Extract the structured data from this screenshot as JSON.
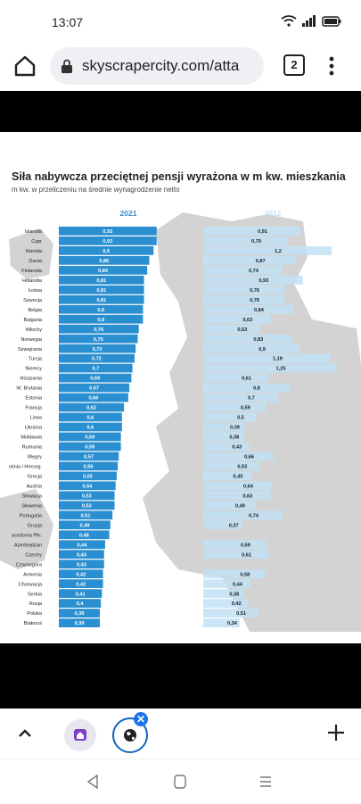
{
  "status": {
    "time": "13:07"
  },
  "browser": {
    "url": "skyscrapercity.com/atta",
    "tab_count": "2"
  },
  "chart_data": {
    "type": "bar",
    "title": "Siła nabywcza przeciętnej pensji wyrażona w m kw. mieszkania",
    "subtitle": "m kw. w przeliczeniu na średnie wynagrodzenie netto",
    "series": [
      {
        "name": "2021",
        "color": "#2a8fd0",
        "values": [
          0.93,
          0.93,
          0.9,
          0.86,
          0.84,
          0.81,
          0.81,
          0.81,
          0.8,
          0.8,
          0.76,
          0.75,
          0.73,
          0.72,
          0.7,
          0.69,
          0.67,
          0.66,
          0.62,
          0.6,
          0.6,
          0.59,
          0.59,
          0.57,
          0.56,
          0.55,
          0.54,
          0.53,
          0.53,
          0.51,
          0.49,
          0.48,
          0.44,
          0.43,
          0.43,
          0.42,
          0.42,
          0.41,
          0.4,
          0.39,
          0.39
        ],
        "labels": [
          "0,93",
          "0,93",
          "0,9",
          "0,86",
          "0,84",
          "0,81",
          "0,81",
          "0,81",
          "0,8",
          "0,8",
          "0,76",
          "0,75",
          "0,73",
          "0,72",
          "0,7",
          "0,69",
          "0,67",
          "0,66",
          "0,62",
          "0,6",
          "0,6",
          "0,59",
          "0,59",
          "0,57",
          "0,56",
          "0,55",
          "0,54",
          "0,53",
          "0,53",
          "0,51",
          "0,49",
          "0,48",
          "0,44",
          "0,43",
          "0,43",
          "0,42",
          "0,42",
          "0,41",
          "0,4",
          "0,39",
          "0,39"
        ]
      },
      {
        "name": "2012",
        "color": "#bfe1f5",
        "values": [
          0.91,
          0.79,
          1.2,
          0.87,
          0.74,
          0.93,
          0.76,
          0.76,
          0.84,
          0.63,
          0.53,
          0.83,
          0.9,
          1.19,
          1.25,
          0.61,
          0.8,
          0.7,
          0.59,
          0.5,
          0.39,
          0.38,
          0.43,
          0.66,
          0.53,
          0.45,
          0.64,
          0.63,
          0.49,
          0.74,
          0.37,
          null,
          0.59,
          0.61,
          null,
          0.58,
          0.44,
          0.38,
          0.42,
          0.51,
          0.34
        ],
        "labels": [
          "0,91",
          "0,79",
          "1,2",
          "0,87",
          "0,74",
          "0,93",
          "0,76",
          "0,76",
          "0,84",
          "0,63",
          "0,53",
          "0,83",
          "0,9",
          "1,19",
          "1,25",
          "0,61",
          "0,8",
          "0,7",
          "0,59",
          "0,5",
          "0,39",
          "0,38",
          "0,43",
          "0,66",
          "0,53",
          "0,45",
          "0,64",
          "0,63",
          "0,49",
          "0,74",
          "0,37",
          "",
          "0,59",
          "0,61",
          "",
          "0,58",
          "0,44",
          "0,38",
          "0,42",
          "0,51",
          "0,34"
        ]
      }
    ],
    "categories": [
      "Islandia",
      "Cypr",
      "Irlandia",
      "Dania",
      "Finlandia",
      "Holandia",
      "Łotwa",
      "Szwecja",
      "Belgia",
      "Bułgaria",
      "Włochy",
      "Norwegia",
      "Szwajcaria",
      "Turcja",
      "Niemcy",
      "Hiszpania",
      "W. Brytania",
      "Estonia",
      "Francja",
      "Litwa",
      "Ukraina",
      "Mołdawia",
      "Rumunia",
      "Węgry",
      "ośnia i Herceg.",
      "Grecja",
      "Austria",
      "Słowacja",
      "Słowenia",
      "Portugalia",
      "Gruzja",
      "acedonia Płn.",
      "Azerbejdżan",
      "Czechy",
      "Czarnogóra",
      "Armenia",
      "Chorwacja",
      "Serbia",
      "Rosja",
      "Polska",
      "Białoruś"
    ],
    "xlim": [
      0,
      1.25
    ]
  }
}
